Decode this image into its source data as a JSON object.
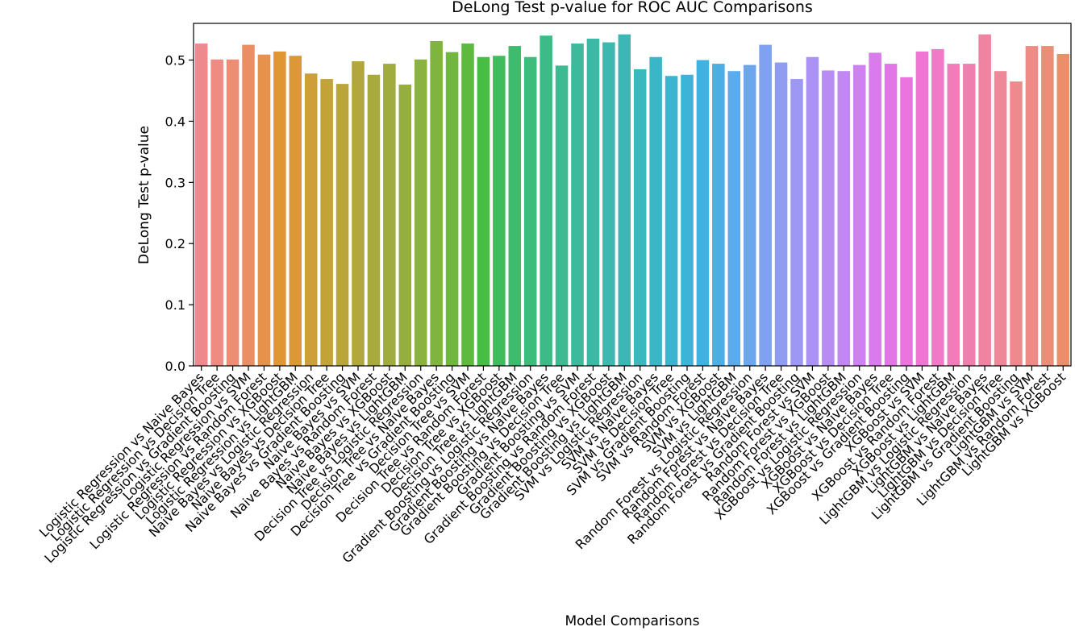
{
  "chart_data": {
    "type": "bar",
    "title": "DeLong Test p-value for ROC AUC Comparisons",
    "xlabel": "Model Comparisons",
    "ylabel": "DeLong Test p-value",
    "ylim": [
      0,
      0.56
    ],
    "yticks": [
      "0.0",
      "0.1",
      "0.2",
      "0.3",
      "0.4",
      "0.5"
    ],
    "grid": false,
    "categories": [
      "Logistic Regression vs Naive Bayes",
      "Logistic Regression vs Decision Tree",
      "Logistic Regression vs Gradient Boosting",
      "Logistic Regression vs SVM",
      "Logistic Regression vs Random Forest",
      "Logistic Regression vs XGBoost",
      "Logistic Regression vs LightGBM",
      "Naive Bayes vs Logistic Regression",
      "Naive Bayes vs Decision Tree",
      "Naive Bayes vs Gradient Boosting",
      "Naive Bayes vs SVM",
      "Naive Bayes vs Random Forest",
      "Naive Bayes vs XGBoost",
      "Naive Bayes vs LightGBM",
      "Decision Tree vs Logistic Regression",
      "Decision Tree vs Naive Bayes",
      "Decision Tree vs Gradient Boosting",
      "Decision Tree vs SVM",
      "Decision Tree vs Random Forest",
      "Decision Tree vs XGBoost",
      "Decision Tree vs LightGBM",
      "Gradient Boosting vs Logistic Regression",
      "Gradient Boosting vs Naive Bayes",
      "Gradient Boosting vs Decision Tree",
      "Gradient Boosting vs SVM",
      "Gradient Boosting vs Random Forest",
      "Gradient Boosting vs XGBoost",
      "Gradient Boosting vs LightGBM",
      "SVM vs Logistic Regression",
      "SVM vs Naive Bayes",
      "SVM vs Decision Tree",
      "SVM vs Gradient Boosting",
      "SVM vs Random Forest",
      "SVM vs XGBoost",
      "SVM vs LightGBM",
      "Random Forest vs Logistic Regression",
      "Random Forest vs Naive Bayes",
      "Random Forest vs Decision Tree",
      "Random Forest vs Gradient Boosting",
      "Random Forest vs SVM",
      "Random Forest vs XGBoost",
      "Random Forest vs LightGBM",
      "XGBoost vs Logistic Regression",
      "XGBoost vs Naive Bayes",
      "XGBoost vs Decision Tree",
      "XGBoost vs Gradient Boosting",
      "XGBoost vs SVM",
      "XGBoost vs Random Forest",
      "XGBoost vs LightGBM",
      "LightGBM vs Logistic Regression",
      "LightGBM vs Naive Bayes",
      "LightGBM vs Decision Tree",
      "LightGBM vs Gradient Boosting",
      "LightGBM vs SVM",
      "LightGBM vs Random Forest",
      "LightGBM vs XGBoost"
    ],
    "values": [
      0.527,
      0.501,
      0.501,
      0.525,
      0.509,
      0.514,
      0.507,
      0.478,
      0.469,
      0.461,
      0.498,
      0.476,
      0.494,
      0.46,
      0.501,
      0.531,
      0.513,
      0.527,
      0.505,
      0.507,
      0.523,
      0.505,
      0.54,
      0.491,
      0.527,
      0.535,
      0.529,
      0.542,
      0.485,
      0.505,
      0.474,
      0.476,
      0.5,
      0.494,
      0.482,
      0.492,
      0.525,
      0.496,
      0.469,
      0.505,
      0.483,
      0.482,
      0.492,
      0.512,
      0.494,
      0.472,
      0.514,
      0.518,
      0.494,
      0.494,
      0.542,
      0.482,
      0.465,
      0.523,
      0.523,
      0.51
    ],
    "colors": [
      "#EE8A8E",
      "#EE8B82",
      "#EC8D74",
      "#EA8F64",
      "#E5924C",
      "#DF9633",
      "#D99A35",
      "#CD9F38",
      "#C3A23A",
      "#BAA53B",
      "#B2A73C",
      "#A9AA3D",
      "#A0AC3E",
      "#96AE3E",
      "#8BB13E",
      "#7EB43F",
      "#6FB73F",
      "#5DBA3F",
      "#47BD46",
      "#3FBD5E",
      "#3EBC6E",
      "#3EBC7B",
      "#3DBB87",
      "#3DBA92",
      "#3DB99C",
      "#3CB9A5",
      "#3CB8AE",
      "#3CB7B6",
      "#3BB7BE",
      "#3BB6C7",
      "#3BB5CF",
      "#3CB4D7",
      "#40B2E0",
      "#4BAFE6",
      "#5CABEA",
      "#6CA7EE",
      "#7EA2F0",
      "#8E9DF2",
      "#9D98F3",
      "#AA93F4",
      "#B78DF3",
      "#C387F2",
      "#CE81F0",
      "#D97BEC",
      "#E376E7",
      "#EB74DE",
      "#EF76D2",
      "#F179C7",
      "#F07DBA",
      "#EF80AE",
      "#EE84A2",
      "#EE8797",
      "#EE8A8E",
      "#EE8B86",
      "#EC8D78",
      "#EA8F6A"
    ]
  }
}
